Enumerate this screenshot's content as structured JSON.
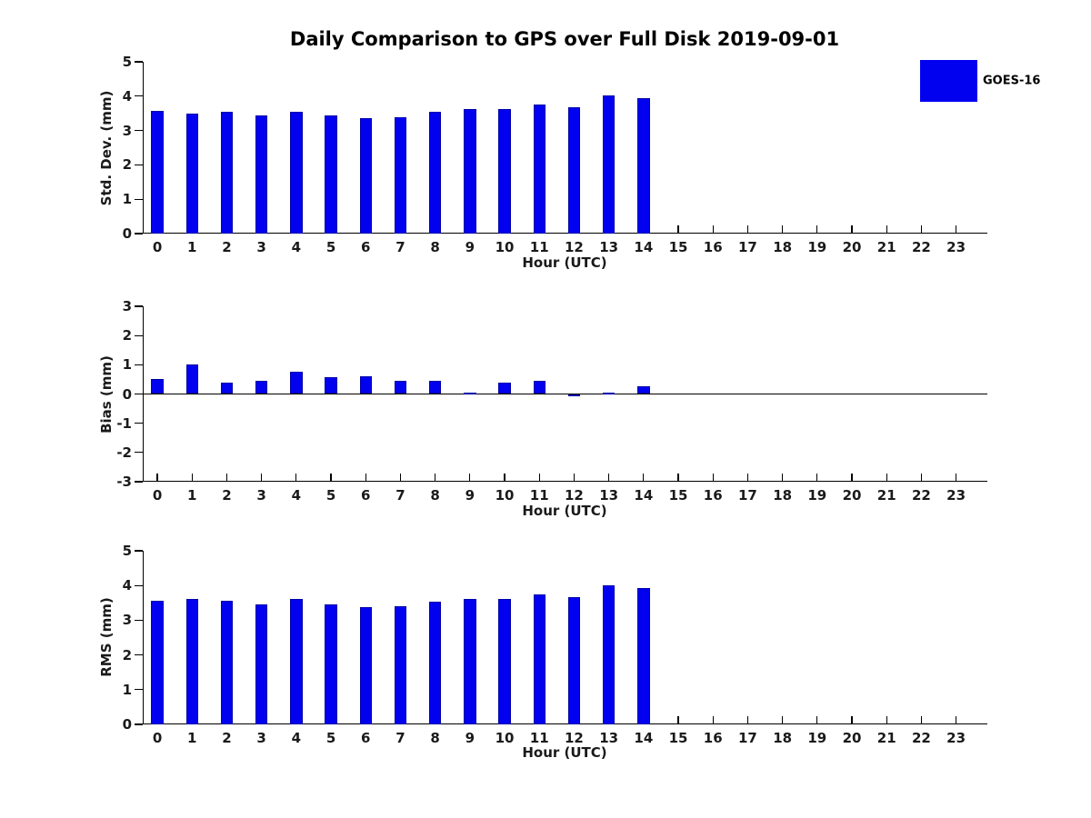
{
  "title": "Daily Comparison to GPS over Full Disk 2019-09-01",
  "legend": {
    "label": "GOES-16",
    "position": "top-right"
  },
  "colors": {
    "bar_fill": "#0101F0",
    "bar_edge": "#0000A8",
    "axis": "#000000",
    "text": "#1a1a1a"
  },
  "chart_data": [
    {
      "type": "bar",
      "panel": "std-dev",
      "ylabel": "Std. Dev. (mm)",
      "xlabel": "Hour (UTC)",
      "ylim": [
        0,
        5
      ],
      "yticks": [
        0,
        1,
        2,
        3,
        4,
        5
      ],
      "xticks": [
        0,
        1,
        2,
        3,
        4,
        5,
        6,
        7,
        8,
        9,
        10,
        11,
        12,
        13,
        14,
        15,
        16,
        17,
        18,
        19,
        20,
        21,
        22,
        23
      ],
      "grid": false,
      "series": [
        {
          "name": "GOES-16",
          "x": [
            0,
            1,
            2,
            3,
            4,
            5,
            6,
            7,
            8,
            9,
            10,
            11,
            12,
            13,
            14
          ],
          "values": [
            3.57,
            3.5,
            3.54,
            3.44,
            3.54,
            3.44,
            3.37,
            3.39,
            3.54,
            3.62,
            3.62,
            3.75,
            3.67,
            4.01,
            3.93
          ]
        }
      ]
    },
    {
      "type": "bar",
      "panel": "bias",
      "ylabel": "Bias (mm)",
      "xlabel": "Hour (UTC)",
      "ylim": [
        -3,
        3
      ],
      "yticks": [
        -3,
        -2,
        -1,
        0,
        1,
        2,
        3
      ],
      "xticks": [
        0,
        1,
        2,
        3,
        4,
        5,
        6,
        7,
        8,
        9,
        10,
        11,
        12,
        13,
        14,
        15,
        16,
        17,
        18,
        19,
        20,
        21,
        22,
        23
      ],
      "grid": false,
      "zero_line": true,
      "series": [
        {
          "name": "GOES-16",
          "x": [
            0,
            1,
            2,
            3,
            4,
            5,
            6,
            7,
            8,
            9,
            10,
            11,
            12,
            13,
            14
          ],
          "values": [
            0.52,
            1.01,
            0.4,
            0.44,
            0.77,
            0.56,
            0.62,
            0.46,
            0.46,
            0.05,
            0.4,
            0.44,
            -0.05,
            0.04,
            0.25
          ]
        }
      ]
    },
    {
      "type": "bar",
      "panel": "rms",
      "ylabel": "RMS (mm)",
      "xlabel": "Hour (UTC)",
      "ylim": [
        0,
        5
      ],
      "yticks": [
        0,
        1,
        2,
        3,
        4,
        5
      ],
      "xticks": [
        0,
        1,
        2,
        3,
        4,
        5,
        6,
        7,
        8,
        9,
        10,
        11,
        12,
        13,
        14,
        15,
        16,
        17,
        18,
        19,
        20,
        21,
        22,
        23
      ],
      "grid": false,
      "series": [
        {
          "name": "GOES-16",
          "x": [
            0,
            1,
            2,
            3,
            4,
            5,
            6,
            7,
            8,
            9,
            10,
            11,
            12,
            13,
            14
          ],
          "values": [
            3.56,
            3.61,
            3.56,
            3.45,
            3.61,
            3.45,
            3.38,
            3.4,
            3.54,
            3.61,
            3.61,
            3.75,
            3.67,
            4.01,
            3.93
          ]
        }
      ]
    }
  ]
}
